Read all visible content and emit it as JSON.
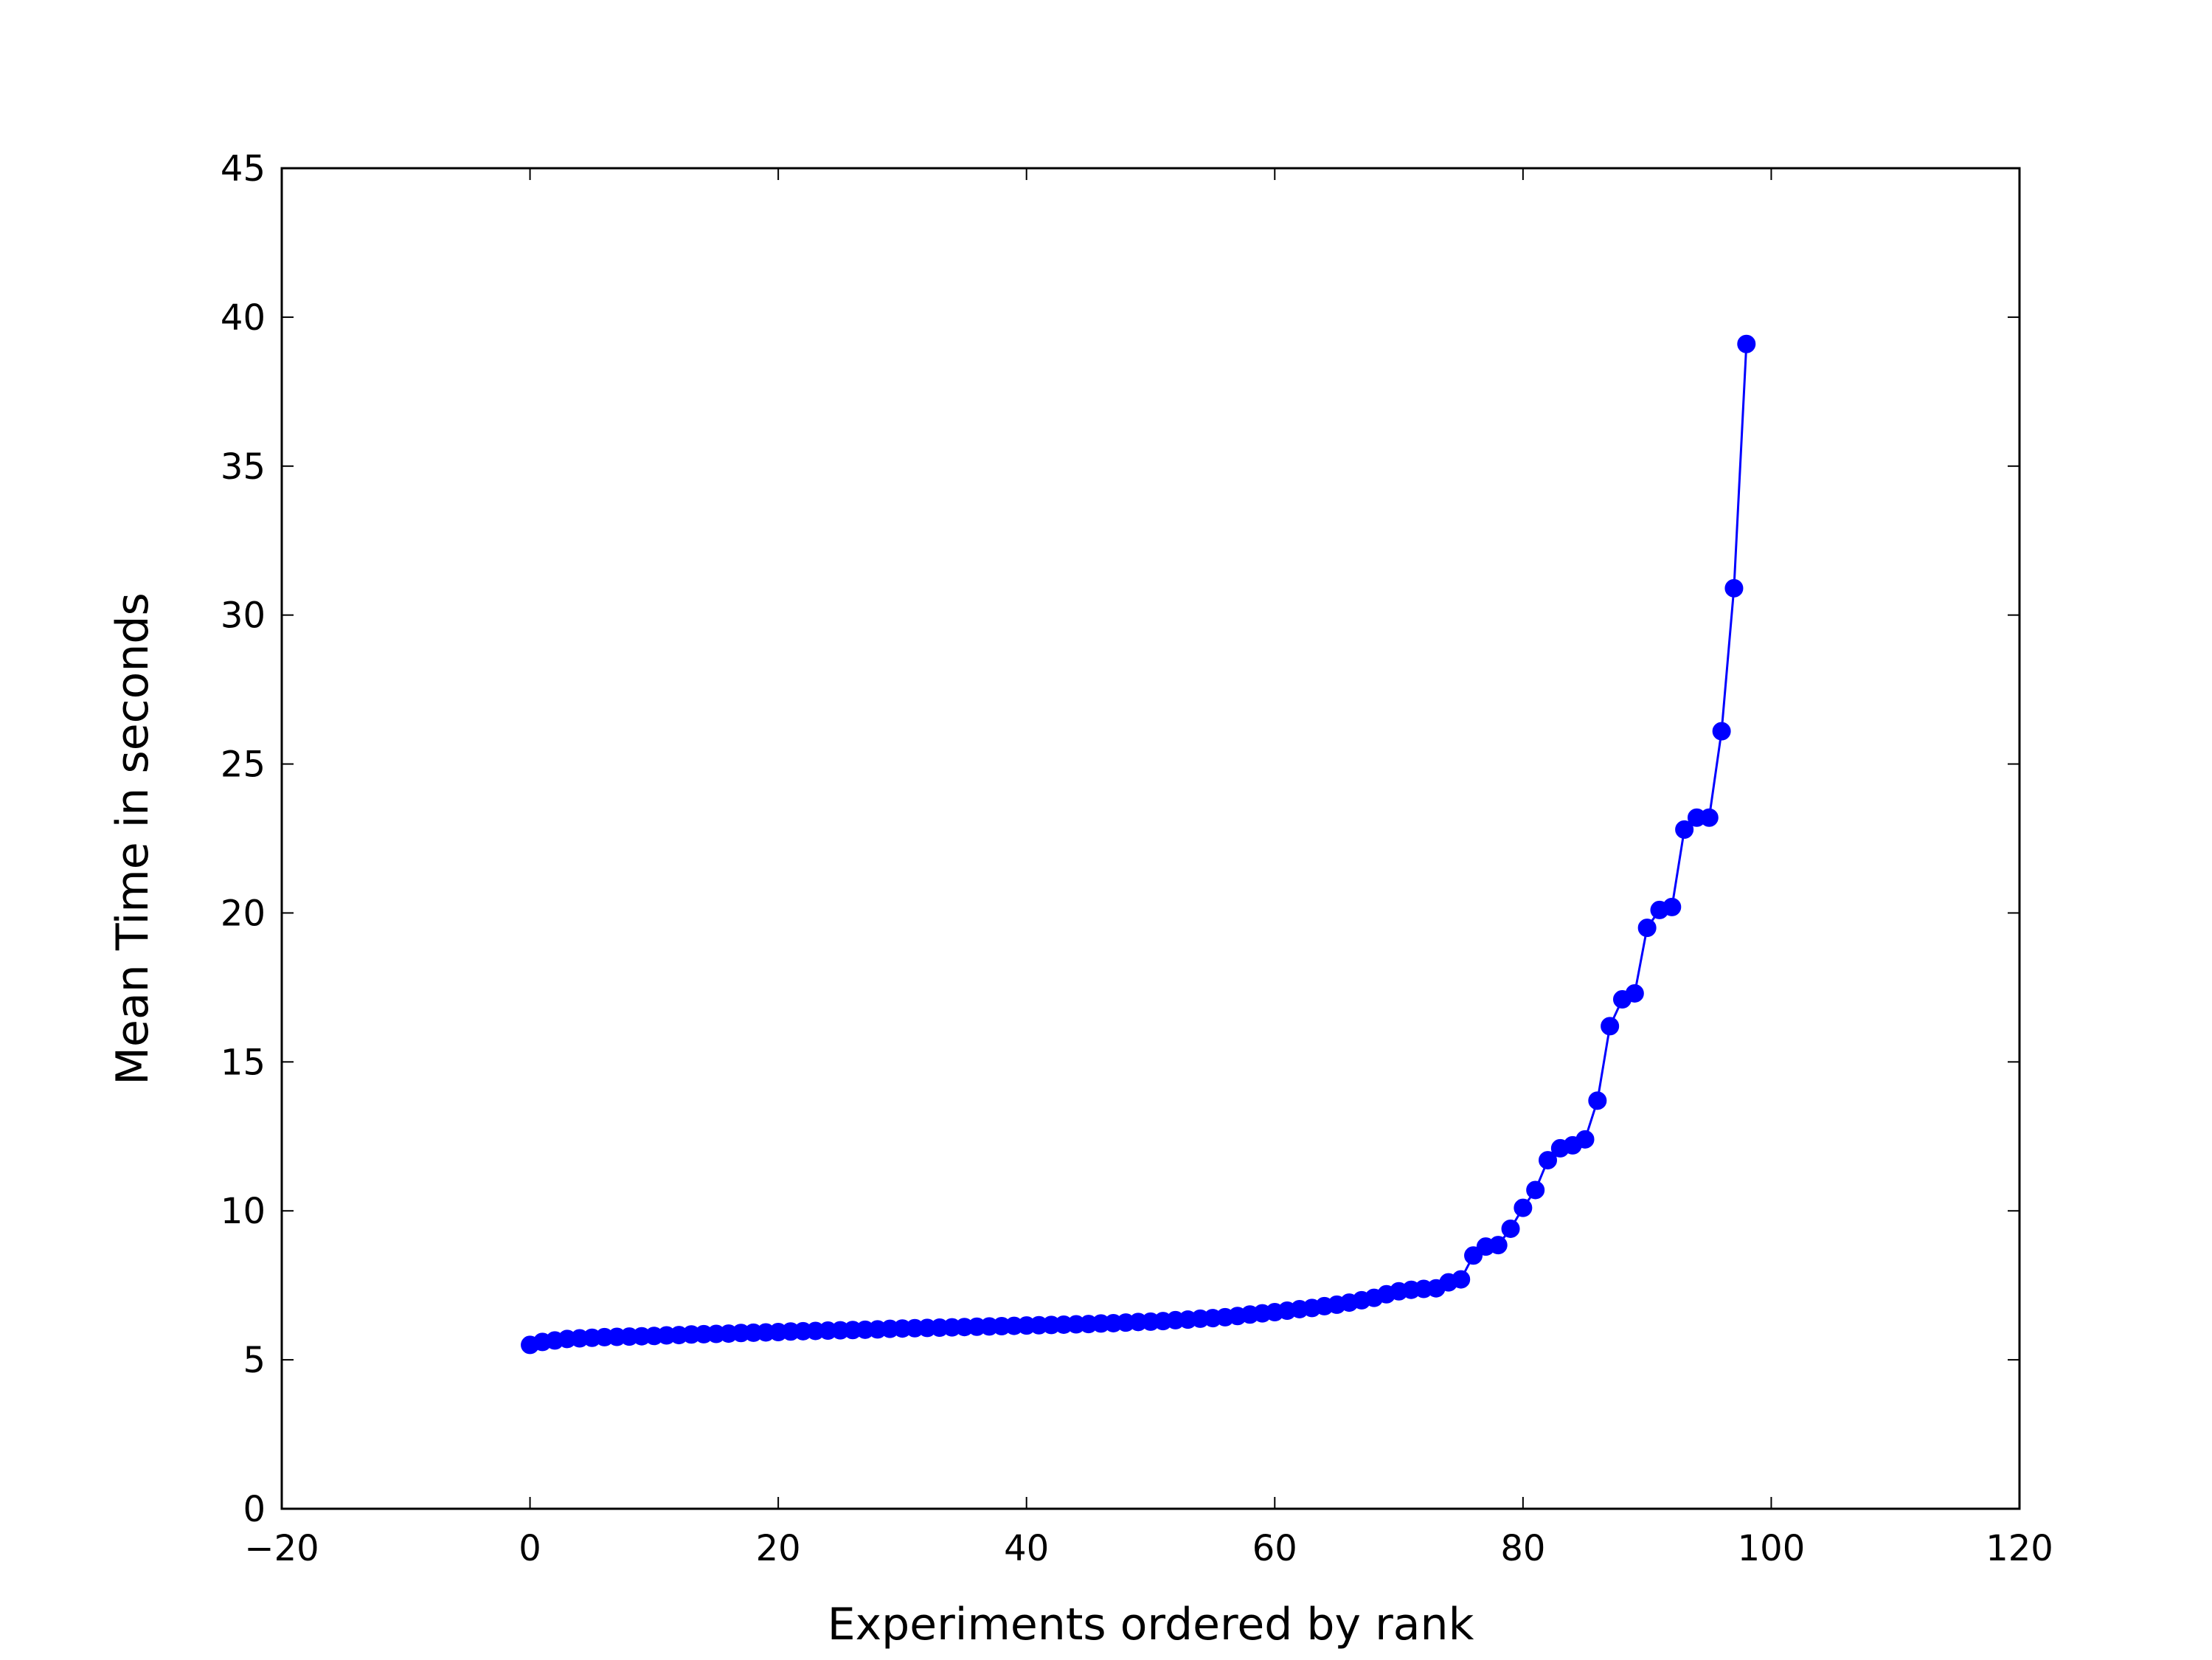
{
  "chart_data": {
    "type": "line",
    "title": "",
    "xlabel": "Experiments ordered by rank",
    "ylabel": "Mean Time in seconds",
    "xlim": [
      -20,
      120
    ],
    "ylim": [
      0,
      45
    ],
    "xticks": [
      -20,
      0,
      20,
      40,
      60,
      80,
      100,
      120
    ],
    "xtick_labels": [
      "−20",
      "0",
      "20",
      "40",
      "60",
      "80",
      "100",
      "120"
    ],
    "yticks": [
      0,
      5,
      10,
      15,
      20,
      25,
      30,
      35,
      40,
      45
    ],
    "ytick_labels": [
      "0",
      "5",
      "10",
      "15",
      "20",
      "25",
      "30",
      "35",
      "40",
      "45"
    ],
    "grid": false,
    "legend": "none",
    "line_color": "#0000ff",
    "marker": "circle",
    "series": [
      {
        "x": [
          0,
          1,
          2,
          3,
          4,
          5,
          6,
          7,
          8,
          9,
          10,
          11,
          12,
          13,
          14,
          15,
          16,
          17,
          18,
          19,
          20,
          21,
          22,
          23,
          24,
          25,
          26,
          27,
          28,
          29,
          30,
          31,
          32,
          33,
          34,
          35,
          36,
          37,
          38,
          39,
          40,
          41,
          42,
          43,
          44,
          45,
          46,
          47,
          48,
          49,
          50,
          51,
          52,
          53,
          54,
          55,
          56,
          57,
          58,
          59,
          60,
          61,
          62,
          63,
          64,
          65,
          66,
          67,
          68,
          69,
          70,
          71,
          72,
          73,
          74,
          75,
          76,
          77,
          78,
          79,
          80,
          81,
          82,
          83,
          84,
          85,
          86,
          87,
          88,
          89,
          90,
          91,
          92,
          93,
          94,
          95,
          96,
          97,
          98
        ],
        "y": [
          5.5,
          5.6,
          5.65,
          5.7,
          5.72,
          5.74,
          5.76,
          5.77,
          5.78,
          5.79,
          5.8,
          5.82,
          5.83,
          5.85,
          5.86,
          5.87,
          5.88,
          5.9,
          5.91,
          5.92,
          5.93,
          5.95,
          5.96,
          5.97,
          5.98,
          5.99,
          6.0,
          6.01,
          6.02,
          6.04,
          6.05,
          6.06,
          6.07,
          6.08,
          6.09,
          6.1,
          6.11,
          6.12,
          6.13,
          6.14,
          6.15,
          6.16,
          6.17,
          6.18,
          6.19,
          6.2,
          6.22,
          6.23,
          6.25,
          6.27,
          6.28,
          6.3,
          6.33,
          6.35,
          6.38,
          6.4,
          6.43,
          6.47,
          6.52,
          6.56,
          6.6,
          6.65,
          6.7,
          6.74,
          6.8,
          6.85,
          6.92,
          7.0,
          7.08,
          7.2,
          7.3,
          7.35,
          7.38,
          7.4,
          7.6,
          7.7,
          8.5,
          8.8,
          8.85,
          9.4,
          10.1,
          10.7,
          11.7,
          12.1,
          12.2,
          12.4,
          13.7,
          16.2,
          17.1,
          17.3,
          19.5,
          20.1,
          20.2,
          22.8,
          23.2,
          23.2,
          26.1,
          30.9,
          39.1
        ]
      }
    ]
  }
}
